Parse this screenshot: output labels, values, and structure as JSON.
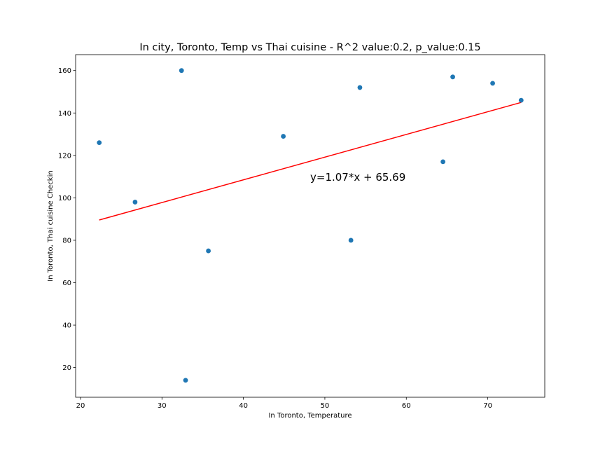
{
  "chart_data": {
    "type": "scatter",
    "title": "In city, Toronto, Temp vs Thai cuisine - R^2 value:0.2, p_value:0.15",
    "xlabel": "In Toronto,  Temperature",
    "ylabel": "In Toronto,  Thai cuisine Checkin",
    "xlim": [
      19.4,
      77.0
    ],
    "ylim": [
      6,
      167.5
    ],
    "xticks": [
      20,
      30,
      40,
      50,
      60,
      70
    ],
    "yticks": [
      20,
      40,
      60,
      80,
      100,
      120,
      140,
      160
    ],
    "grid": false,
    "points": [
      {
        "x": 22.3,
        "y": 126
      },
      {
        "x": 26.7,
        "y": 98
      },
      {
        "x": 32.4,
        "y": 160
      },
      {
        "x": 32.9,
        "y": 14
      },
      {
        "x": 35.7,
        "y": 75
      },
      {
        "x": 44.9,
        "y": 129
      },
      {
        "x": 53.2,
        "y": 80
      },
      {
        "x": 54.3,
        "y": 152
      },
      {
        "x": 64.5,
        "y": 117
      },
      {
        "x": 65.7,
        "y": 157
      },
      {
        "x": 70.6,
        "y": 154
      },
      {
        "x": 74.1,
        "y": 146
      }
    ],
    "regression": {
      "slope": 1.07,
      "intercept": 65.69,
      "x_range": [
        22.3,
        74.1
      ],
      "equation": "y=1.07*x + 65.69",
      "equation_anchor": [
        48.2,
        108
      ]
    },
    "colors": {
      "points": "#1f77b4",
      "line": "#ff0000",
      "axes": "#000000"
    }
  }
}
